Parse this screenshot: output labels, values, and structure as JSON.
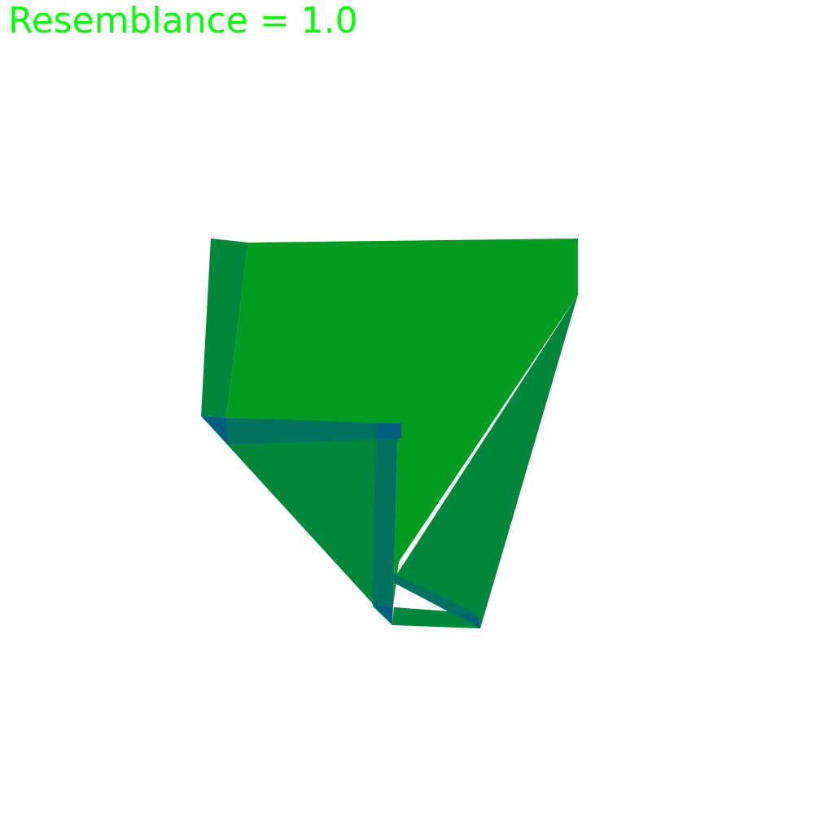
{
  "score_label": "Resemblance = 1.0",
  "colors": {
    "score_text": "#00ff00",
    "background": "#ffffff",
    "front_face": "#039c22",
    "back_face": "#01863c",
    "edge": "#017160",
    "corner": "#015e7c"
  }
}
